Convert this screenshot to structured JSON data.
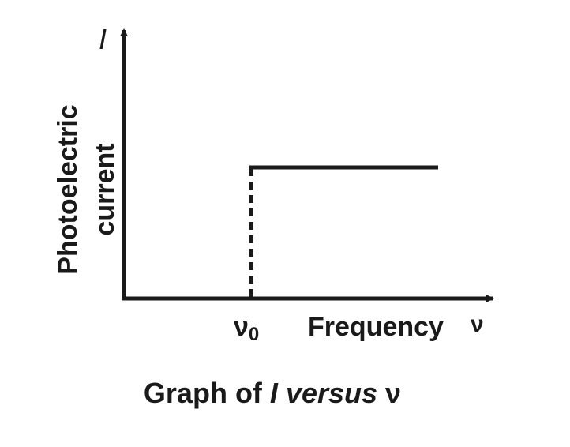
{
  "y_axis": {
    "symbol": "I",
    "title": [
      "Photoelectric",
      "current"
    ]
  },
  "x_axis": {
    "marker": {
      "symbol": "ν",
      "subscript": "0"
    },
    "title": "Frequency",
    "symbol": "ν"
  },
  "caption": {
    "parts": [
      "Graph of ",
      "I",
      " versus ",
      "ν"
    ]
  }
}
